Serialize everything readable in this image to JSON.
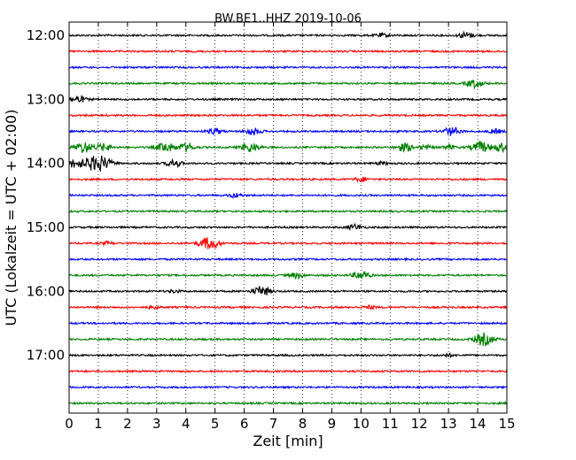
{
  "chart_data": {
    "type": "line",
    "title": "BW.BE1..HHZ 2019-10-06",
    "xlabel": "Zeit  [min]",
    "ylabel": "UTC (Lokalzeit = UTC + 02:00)",
    "xlim": [
      0,
      15
    ],
    "x_ticks": [
      "0",
      "1",
      "2",
      "3",
      "4",
      "5",
      "6",
      "7",
      "8",
      "9",
      "10",
      "11",
      "12",
      "13",
      "14",
      "15"
    ],
    "y_ticks": [
      {
        "label": "12:00",
        "row": 0
      },
      {
        "label": "13:00",
        "row": 4
      },
      {
        "label": "14:00",
        "row": 8
      },
      {
        "label": "15:00",
        "row": 12
      },
      {
        "label": "16:00",
        "row": 16
      },
      {
        "label": "17:00",
        "row": 20
      }
    ],
    "grid": "vertical dotted",
    "row_interval_minutes": 15,
    "colors": [
      "#000000",
      "#ff0000",
      "#0000ff",
      "#008000"
    ],
    "series": [
      {
        "start": "12:00",
        "events": [
          [
            10.7,
            0.25
          ],
          [
            13.6,
            0.45
          ]
        ]
      },
      {
        "start": "12:15",
        "events": []
      },
      {
        "start": "12:30",
        "events": []
      },
      {
        "start": "12:45",
        "events": [
          [
            13.9,
            0.6
          ]
        ]
      },
      {
        "start": "13:00",
        "events": [
          [
            0.3,
            0.5
          ]
        ]
      },
      {
        "start": "13:15",
        "events": []
      },
      {
        "start": "13:30",
        "events": [
          [
            5.0,
            0.4
          ],
          [
            6.3,
            0.5
          ],
          [
            13.1,
            0.6
          ],
          [
            14.6,
            0.3
          ]
        ]
      },
      {
        "start": "13:45",
        "events": [
          [
            0.5,
            0.8
          ],
          [
            1.2,
            0.5
          ],
          [
            3.3,
            0.7
          ],
          [
            4.0,
            0.6
          ],
          [
            6.2,
            0.7
          ],
          [
            11.5,
            0.6
          ],
          [
            12.2,
            0.3
          ],
          [
            13.0,
            0.3
          ],
          [
            14.1,
            0.8
          ],
          [
            14.8,
            0.6
          ]
        ]
      },
      {
        "start": "14:00",
        "events": [
          [
            0.2,
            0.6
          ],
          [
            0.7,
            0.6
          ],
          [
            1.1,
            1.0
          ],
          [
            3.6,
            0.5
          ],
          [
            10.7,
            0.2
          ]
        ]
      },
      {
        "start": "14:15",
        "events": [
          [
            10.0,
            0.3
          ]
        ]
      },
      {
        "start": "14:30",
        "events": [
          [
            5.7,
            0.3
          ]
        ]
      },
      {
        "start": "14:45",
        "events": []
      },
      {
        "start": "15:00",
        "events": [
          [
            9.8,
            0.4
          ]
        ]
      },
      {
        "start": "15:15",
        "events": [
          [
            4.8,
            0.9
          ],
          [
            1.3,
            0.2
          ]
        ]
      },
      {
        "start": "15:30",
        "events": []
      },
      {
        "start": "15:45",
        "events": [
          [
            7.8,
            0.4
          ],
          [
            10.0,
            0.6
          ]
        ]
      },
      {
        "start": "16:00",
        "events": [
          [
            6.6,
            0.7
          ],
          [
            3.6,
            0.2
          ]
        ]
      },
      {
        "start": "16:15",
        "events": [
          [
            2.9,
            0.2
          ],
          [
            10.3,
            0.2
          ]
        ]
      },
      {
        "start": "16:30",
        "events": []
      },
      {
        "start": "16:45",
        "events": [
          [
            14.2,
            0.9
          ]
        ]
      },
      {
        "start": "17:00",
        "events": [
          [
            13.0,
            0.2
          ]
        ]
      },
      {
        "start": "17:15",
        "events": []
      },
      {
        "start": "17:30",
        "events": []
      },
      {
        "start": "17:45",
        "events": []
      }
    ]
  }
}
